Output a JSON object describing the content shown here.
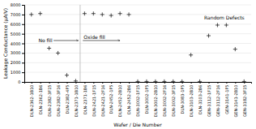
{
  "chart_data": {
    "type": "scatter",
    "xlabel": "Wafer / Die Number",
    "ylabel": "Leakage Conductance (μA/V)",
    "categories": [
      "DLN-2362-1B10",
      "DLN-2362-1B6",
      "DLN-2382-3F15",
      "DLN-2382-3F16",
      "DLN-2382-4F5",
      "DLN-2371-1B10",
      "DLN-2371-1B6",
      "DLN-2421-1F15",
      "DLN-2421-2F16",
      "DLN-2452-1F5",
      "DLN-2452-2B10",
      "DLN-2452-2B6",
      "DLN-3002-1F15",
      "DLN-3002-1F5",
      "DLN-3002-2B10",
      "DLN-3002-2F16",
      "DLN-3002-3F15",
      "DLN-3083-1F5",
      "DLN-3103-2B10",
      "DLN-3103-2B6",
      "GEN-3112-1F15",
      "GEN-3112-2F16",
      "GEN-3141-1F5",
      "GEN-3141-2B10",
      "GEN-3182-3F15"
    ],
    "values": [
      7000,
      7100,
      3500,
      3000,
      700,
      100,
      7100,
      7100,
      7000,
      6900,
      7100,
      7000,
      50,
      50,
      50,
      50,
      50,
      50,
      2800,
      50,
      4800,
      5900,
      5900,
      3400,
      50
    ],
    "color": "#222222",
    "marker": "plus",
    "ylim": [
      0,
      8000
    ],
    "yticks": [
      0,
      1000,
      2000,
      3000,
      4000,
      5000,
      6000,
      7000,
      8000
    ],
    "grid": true,
    "annotations": [
      {
        "type": "line",
        "x": 5.5
      },
      {
        "text": "No fill",
        "x": 0.8,
        "y": 4300,
        "arrow": [
          2.5,
          5.3
        ]
      },
      {
        "text": "Oxide fill",
        "x": 5.9,
        "y": 4300,
        "arrow": [
          5.8,
          10.0
        ]
      },
      {
        "text": "Random Defects",
        "x": 19.5,
        "y": 6600
      }
    ]
  }
}
